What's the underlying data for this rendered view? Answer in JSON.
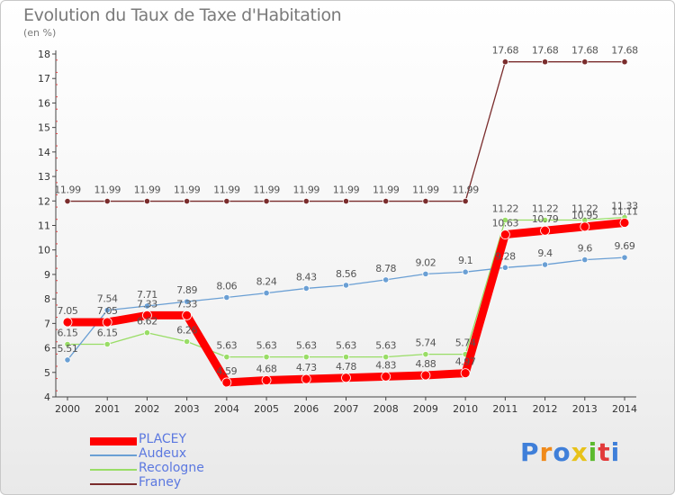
{
  "chart_data": {
    "type": "line",
    "title": "Evolution du Taux de Taxe d'Habitation",
    "unit_label": "(en %)",
    "x": [
      "2000",
      "2001",
      "2002",
      "2003",
      "2004",
      "2005",
      "2006",
      "2007",
      "2008",
      "2009",
      "2010",
      "2011",
      "2012",
      "2013",
      "2014"
    ],
    "ylim": [
      4,
      18
    ],
    "yticks": [
      "4",
      "5",
      "6",
      "7",
      "8",
      "9",
      "10",
      "11",
      "12",
      "13",
      "14",
      "15",
      "16",
      "17",
      "18"
    ],
    "grid": false,
    "legend_position": "bottom-left",
    "series": [
      {
        "name": "PLACEY",
        "color": "#ff0000",
        "values": [
          7.05,
          7.05,
          7.33,
          7.33,
          4.59,
          4.68,
          4.73,
          4.78,
          4.83,
          4.88,
          4.97,
          10.63,
          10.79,
          10.95,
          11.11
        ],
        "labels": [
          "7.05",
          "7.05",
          "7.33",
          "7.33",
          "4.59",
          "4.68",
          "4.73",
          "4.78",
          "4.83",
          "4.88",
          "4.97",
          "10.63",
          "10.79",
          "10.95",
          "11.11"
        ]
      },
      {
        "name": "Audeux",
        "color": "#6a9fd4",
        "values": [
          5.51,
          7.54,
          7.71,
          7.89,
          8.06,
          8.24,
          8.43,
          8.56,
          8.78,
          9.02,
          9.1,
          9.28,
          9.4,
          9.6,
          9.69
        ],
        "labels": [
          "5.51",
          "7.54",
          "7.71",
          "7.89",
          "8.06",
          "8.24",
          "8.43",
          "8.56",
          "8.78",
          "9.02",
          "9.1",
          "9.28",
          "9.4",
          "9.6",
          "9.69"
        ]
      },
      {
        "name": "Recologne",
        "color": "#99dd66",
        "values": [
          6.15,
          6.15,
          6.62,
          6.26,
          5.63,
          5.63,
          5.63,
          5.63,
          5.63,
          5.74,
          5.74,
          11.22,
          11.22,
          11.22,
          11.33
        ],
        "labels": [
          "6.15",
          "6.15",
          "6.62",
          "6.26",
          "5.63",
          "5.63",
          "5.63",
          "5.63",
          "5.63",
          "5.74",
          "5.74",
          "11.22",
          "11.22",
          "11.22",
          "11.33"
        ]
      },
      {
        "name": "Franey",
        "color": "#7a2c2c",
        "values": [
          11.99,
          11.99,
          11.99,
          11.99,
          11.99,
          11.99,
          11.99,
          11.99,
          11.99,
          11.99,
          11.99,
          17.68,
          17.68,
          17.68,
          17.68
        ],
        "labels": [
          "11.99",
          "11.99",
          "11.99",
          "11.99",
          "11.99",
          "11.99",
          "11.99",
          "11.99",
          "11.99",
          "11.99",
          "11.99",
          "17.68",
          "17.68",
          "17.68",
          "17.68"
        ]
      }
    ]
  },
  "brand": {
    "letters": [
      "P",
      "r",
      "o",
      "x",
      "i",
      "t",
      "i"
    ],
    "colors": [
      "#3f7fd9",
      "#f08a1a",
      "#3f7fd9",
      "#e8c21a",
      "#5cba2e",
      "#e23a3a",
      "#3f7fd9"
    ]
  }
}
